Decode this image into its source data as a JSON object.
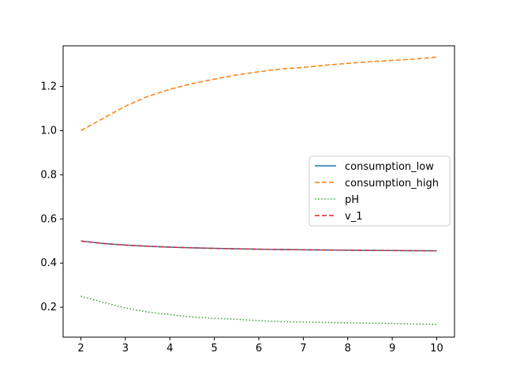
{
  "chart_data": {
    "type": "line",
    "title": "",
    "xlabel": "",
    "ylabel": "",
    "xlim": [
      1.6,
      10.4
    ],
    "ylim": [
      0.0644,
      1.3844
    ],
    "grid": false,
    "legend_placement": "center-right",
    "x_ticks": [
      2,
      3,
      4,
      5,
      6,
      7,
      8,
      9,
      10
    ],
    "y_ticks": [
      0.2,
      0.4,
      0.6,
      0.8,
      1.0,
      1.2
    ],
    "x_tick_labels": [
      "2",
      "3",
      "4",
      "5",
      "6",
      "7",
      "8",
      "9",
      "10"
    ],
    "y_tick_labels": [
      "0.2",
      "0.4",
      "0.6",
      "0.8",
      "1.0",
      "1.2"
    ],
    "x": [
      2,
      2.5,
      3,
      3.5,
      4,
      4.5,
      5,
      5.5,
      6,
      6.5,
      7,
      7.5,
      8,
      8.5,
      9,
      9.5,
      10
    ],
    "series": [
      {
        "name": "consumption_low",
        "color": "#1f77b4",
        "style": "solid",
        "values": [
          0.5,
          0.4889,
          0.4815,
          0.4762,
          0.4722,
          0.4691,
          0.4667,
          0.4646,
          0.463,
          0.4615,
          0.4603,
          0.4593,
          0.4583,
          0.4575,
          0.4568,
          0.4561,
          0.4556
        ]
      },
      {
        "name": "consumption_high",
        "color": "#ff7f0e",
        "style": "dashed",
        "values": [
          1.0,
          1.0556,
          1.1111,
          1.1546,
          1.1875,
          1.2127,
          1.2333,
          1.2525,
          1.2667,
          1.2791,
          1.2865,
          1.2968,
          1.3046,
          1.3124,
          1.3181,
          1.3244,
          1.3333
        ]
      },
      {
        "name": "pH",
        "color": "#2ca02c",
        "style": "dotted",
        "values": [
          0.25,
          0.2222,
          0.1963,
          0.1786,
          0.1667,
          0.1556,
          0.15,
          0.1455,
          0.1389,
          0.1346,
          0.1328,
          0.1311,
          0.1293,
          0.1275,
          0.1265,
          0.1237,
          0.1222
        ]
      },
      {
        "name": "v_1",
        "color": "#d62728",
        "style": "dashed",
        "values": [
          0.5,
          0.4889,
          0.4815,
          0.4762,
          0.4722,
          0.4691,
          0.4667,
          0.4646,
          0.463,
          0.4615,
          0.4603,
          0.4593,
          0.4583,
          0.4575,
          0.4568,
          0.4561,
          0.4556
        ]
      }
    ]
  }
}
